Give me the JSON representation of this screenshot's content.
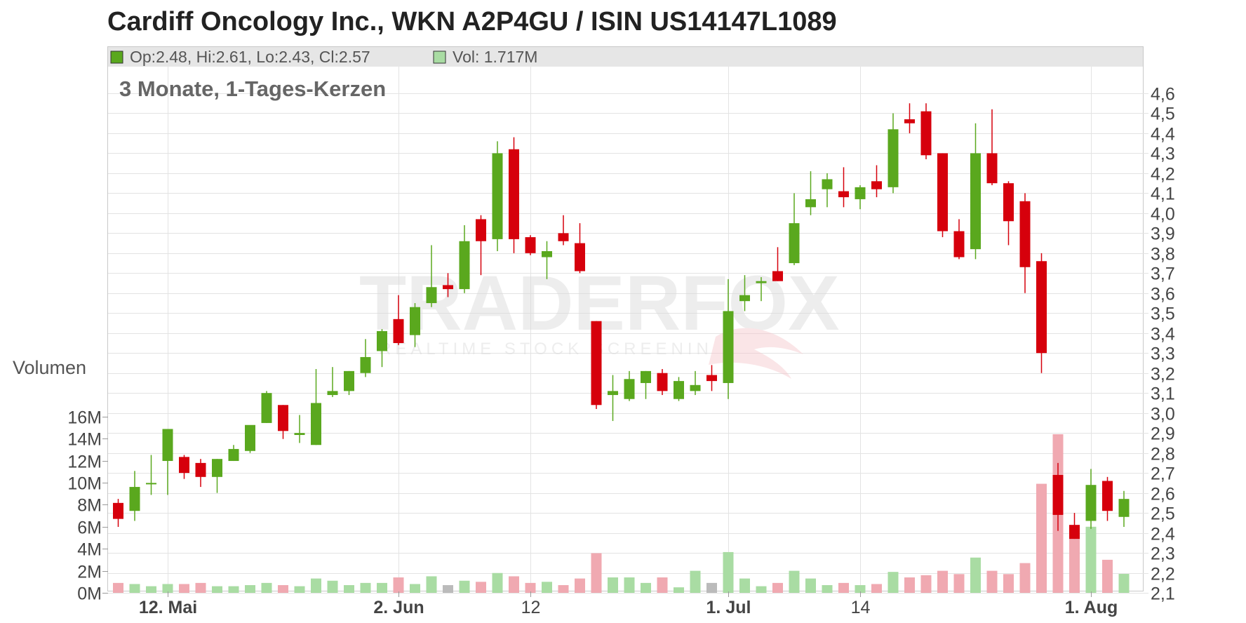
{
  "header": {
    "title": "Cardiff Oncology Inc., WKN A2P4GU / ISIN US14147L1089"
  },
  "legend": {
    "ohlc_label": "Op:2.48, Hi:2.61, Lo:2.43, Cl:2.57",
    "volume_label": "Vol: 1.717M",
    "ohlc_swatch": "#5aa81e",
    "volume_swatch": "#a9dca3"
  },
  "panel": {
    "subtitle": "3 Monate, 1-Tages-Kerzen",
    "volume_axis_label": "Volumen"
  },
  "watermark": {
    "brand": "TRADERFOX",
    "tagline": "REALTIME STOCK SCREENING"
  },
  "colors": {
    "up": "#5aa81e",
    "down": "#d6000c",
    "vol_up": "#a9dca3",
    "vol_down": "#f0a9b1",
    "vol_neutral": "#bbbbbb"
  },
  "chart_data": {
    "type": "candlestick",
    "price_axis": {
      "min": 2.1,
      "max": 4.6,
      "ticks": [
        "2,1",
        "2,2",
        "2,3",
        "2,4",
        "2,5",
        "2,6",
        "2,7",
        "2,8",
        "2,9",
        "3,0",
        "3,1",
        "3,2",
        "3,3",
        "3,4",
        "3,5",
        "3,6",
        "3,7",
        "3,8",
        "3,9",
        "4,0",
        "4,1",
        "4,2",
        "4,3",
        "4,4",
        "4,5",
        "4,6"
      ]
    },
    "volume_axis": {
      "min": 0,
      "max": 16,
      "unit": "M",
      "ticks": [
        "0M",
        "2M",
        "4M",
        "6M",
        "8M",
        "10M",
        "12M",
        "14M",
        "16M"
      ]
    },
    "x_labels": [
      {
        "text": "12. Mai",
        "index": 3,
        "bold": true
      },
      {
        "text": "2. Jun",
        "index": 17,
        "bold": true
      },
      {
        "text": "12",
        "index": 25,
        "bold": false
      },
      {
        "text": "1. Jul",
        "index": 37,
        "bold": true
      },
      {
        "text": "14",
        "index": 45,
        "bold": false
      },
      {
        "text": "1. Aug",
        "index": 59,
        "bold": true
      }
    ],
    "candles": [
      {
        "o": 2.55,
        "h": 2.57,
        "l": 2.43,
        "c": 2.47,
        "v": 0.9
      },
      {
        "o": 2.51,
        "h": 2.71,
        "l": 2.46,
        "c": 2.63,
        "v": 0.8
      },
      {
        "o": 2.65,
        "h": 2.79,
        "l": 2.59,
        "c": 2.65,
        "v": 0.6
      },
      {
        "o": 2.76,
        "h": 2.92,
        "l": 2.59,
        "c": 2.92,
        "v": 0.8
      },
      {
        "o": 2.78,
        "h": 2.79,
        "l": 2.67,
        "c": 2.7,
        "v": 0.8
      },
      {
        "o": 2.75,
        "h": 2.77,
        "l": 2.63,
        "c": 2.68,
        "v": 0.9
      },
      {
        "o": 2.68,
        "h": 2.77,
        "l": 2.6,
        "c": 2.77,
        "v": 0.6
      },
      {
        "o": 2.76,
        "h": 2.84,
        "l": 2.76,
        "c": 2.82,
        "v": 0.6
      },
      {
        "o": 2.81,
        "h": 2.92,
        "l": 2.8,
        "c": 2.94,
        "v": 0.7
      },
      {
        "o": 2.95,
        "h": 3.11,
        "l": 2.95,
        "c": 3.1,
        "v": 0.9
      },
      {
        "o": 3.04,
        "h": 3.04,
        "l": 2.87,
        "c": 2.91,
        "v": 0.7
      },
      {
        "o": 2.89,
        "h": 2.99,
        "l": 2.85,
        "c": 2.9,
        "v": 0.6
      },
      {
        "o": 2.84,
        "h": 3.22,
        "l": 2.84,
        "c": 3.05,
        "v": 1.3
      },
      {
        "o": 3.09,
        "h": 3.23,
        "l": 3.08,
        "c": 3.11,
        "v": 1.1
      },
      {
        "o": 3.11,
        "h": 3.21,
        "l": 3.09,
        "c": 3.21,
        "v": 0.7
      },
      {
        "o": 3.2,
        "h": 3.37,
        "l": 3.18,
        "c": 3.28,
        "v": 0.9
      },
      {
        "o": 3.31,
        "h": 3.42,
        "l": 3.23,
        "c": 3.41,
        "v": 0.9
      },
      {
        "o": 3.47,
        "h": 3.59,
        "l": 3.34,
        "c": 3.35,
        "v": 1.4
      },
      {
        "o": 3.39,
        "h": 3.55,
        "l": 3.33,
        "c": 3.53,
        "v": 0.8
      },
      {
        "o": 3.55,
        "h": 3.84,
        "l": 3.53,
        "c": 3.63,
        "v": 1.5
      },
      {
        "o": 3.64,
        "h": 3.7,
        "l": 3.58,
        "c": 3.62,
        "v": 0.7,
        "nv": true
      },
      {
        "o": 3.62,
        "h": 3.94,
        "l": 3.6,
        "c": 3.86,
        "v": 1.1
      },
      {
        "o": 3.97,
        "h": 3.99,
        "l": 3.69,
        "c": 3.86,
        "v": 1.0
      },
      {
        "o": 3.87,
        "h": 4.36,
        "l": 3.81,
        "c": 4.3,
        "v": 1.8
      },
      {
        "o": 4.32,
        "h": 4.38,
        "l": 3.8,
        "c": 3.87,
        "v": 1.5
      },
      {
        "o": 3.88,
        "h": 3.89,
        "l": 3.79,
        "c": 3.8,
        "v": 0.9
      },
      {
        "o": 3.78,
        "h": 3.86,
        "l": 3.67,
        "c": 3.81,
        "v": 1.0
      },
      {
        "o": 3.9,
        "h": 3.99,
        "l": 3.84,
        "c": 3.86,
        "v": 0.7
      },
      {
        "o": 3.85,
        "h": 3.95,
        "l": 3.7,
        "c": 3.71,
        "v": 1.3
      },
      {
        "o": 3.46,
        "h": 3.46,
        "l": 3.02,
        "c": 3.04,
        "v": 3.6
      },
      {
        "o": 3.09,
        "h": 3.19,
        "l": 2.96,
        "c": 3.11,
        "v": 1.4
      },
      {
        "o": 3.07,
        "h": 3.21,
        "l": 3.06,
        "c": 3.17,
        "v": 1.4
      },
      {
        "o": 3.15,
        "h": 3.21,
        "l": 3.07,
        "c": 3.21,
        "v": 0.9
      },
      {
        "o": 3.2,
        "h": 3.22,
        "l": 3.09,
        "c": 3.11,
        "v": 1.4
      },
      {
        "o": 3.07,
        "h": 3.18,
        "l": 3.06,
        "c": 3.16,
        "v": 0.5
      },
      {
        "o": 3.11,
        "h": 3.21,
        "l": 3.09,
        "c": 3.14,
        "v": 2.0
      },
      {
        "o": 3.19,
        "h": 3.24,
        "l": 3.11,
        "c": 3.16,
        "v": 0.9,
        "nv": true
      },
      {
        "o": 3.15,
        "h": 3.67,
        "l": 3.07,
        "c": 3.51,
        "v": 3.7
      },
      {
        "o": 3.56,
        "h": 3.69,
        "l": 3.51,
        "c": 3.59,
        "v": 1.3
      },
      {
        "o": 3.65,
        "h": 3.68,
        "l": 3.56,
        "c": 3.66,
        "v": 0.6
      },
      {
        "o": 3.71,
        "h": 3.83,
        "l": 3.66,
        "c": 3.66,
        "v": 0.9
      },
      {
        "o": 3.75,
        "h": 4.1,
        "l": 3.74,
        "c": 3.95,
        "v": 2.0
      },
      {
        "o": 4.03,
        "h": 4.21,
        "l": 3.99,
        "c": 4.07,
        "v": 1.3
      },
      {
        "o": 4.12,
        "h": 4.2,
        "l": 4.03,
        "c": 4.17,
        "v": 0.7
      },
      {
        "o": 4.11,
        "h": 4.23,
        "l": 4.03,
        "c": 4.08,
        "v": 0.9
      },
      {
        "o": 4.07,
        "h": 4.14,
        "l": 4.02,
        "c": 4.13,
        "v": 0.7
      },
      {
        "o": 4.16,
        "h": 4.24,
        "l": 4.08,
        "c": 4.12,
        "v": 0.8
      },
      {
        "o": 4.13,
        "h": 4.5,
        "l": 4.1,
        "c": 4.42,
        "v": 1.9
      },
      {
        "o": 4.47,
        "h": 4.55,
        "l": 4.4,
        "c": 4.45,
        "v": 1.4
      },
      {
        "o": 4.51,
        "h": 4.55,
        "l": 4.27,
        "c": 4.29,
        "v": 1.6
      },
      {
        "o": 4.3,
        "h": 4.3,
        "l": 3.88,
        "c": 3.91,
        "v": 2.0
      },
      {
        "o": 3.91,
        "h": 3.97,
        "l": 3.77,
        "c": 3.78,
        "v": 1.7
      },
      {
        "o": 3.82,
        "h": 4.45,
        "l": 3.77,
        "c": 4.3,
        "v": 3.2
      },
      {
        "o": 4.3,
        "h": 4.52,
        "l": 4.14,
        "c": 4.15,
        "v": 2.0
      },
      {
        "o": 4.15,
        "h": 4.16,
        "l": 3.84,
        "c": 3.96,
        "v": 1.7
      },
      {
        "o": 4.06,
        "h": 4.1,
        "l": 3.6,
        "c": 3.73,
        "v": 2.7
      },
      {
        "o": 3.76,
        "h": 3.8,
        "l": 3.2,
        "c": 3.3,
        "v": 9.9
      },
      {
        "o": 2.69,
        "h": 2.75,
        "l": 2.41,
        "c": 2.49,
        "v": 14.4
      },
      {
        "o": 2.44,
        "h": 2.5,
        "l": 2.37,
        "c": 2.37,
        "v": 6.1
      },
      {
        "o": 2.46,
        "h": 2.72,
        "l": 2.42,
        "c": 2.64,
        "v": 6.0
      },
      {
        "o": 2.66,
        "h": 2.68,
        "l": 2.46,
        "c": 2.51,
        "v": 3.0
      },
      {
        "o": 2.48,
        "h": 2.61,
        "l": 2.43,
        "c": 2.57,
        "v": 1.717
      }
    ]
  }
}
